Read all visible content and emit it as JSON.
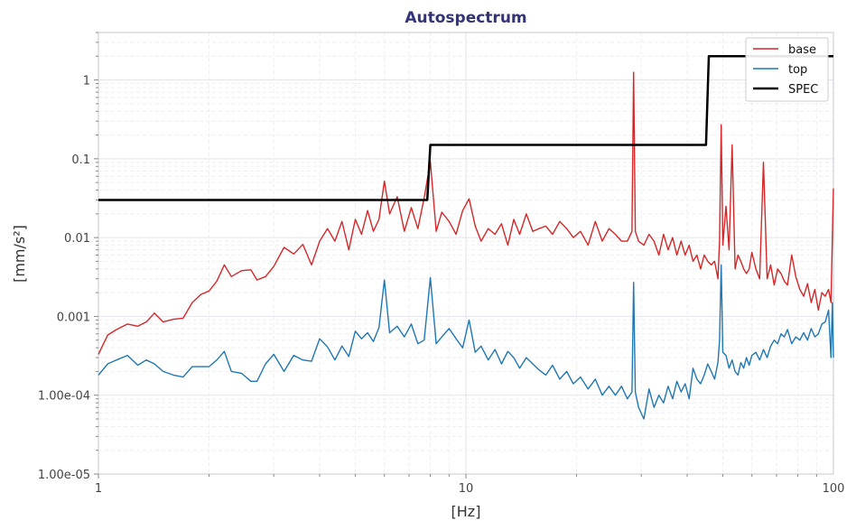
{
  "chart_data": {
    "type": "line",
    "title": "Autospectrum",
    "xlabel": "[Hz]",
    "ylabel": "[mm/s²]",
    "xscale": "log",
    "yscale": "log",
    "xlim": [
      1,
      100
    ],
    "ylim": [
      1e-05,
      4
    ],
    "grid": true,
    "legend_position": "top-right",
    "x_ticks": [
      {
        "value": 1,
        "label": "1"
      },
      {
        "value": 10,
        "label": "10"
      },
      {
        "value": 100,
        "label": "100"
      }
    ],
    "y_ticks": [
      {
        "value": 1,
        "label": "1"
      },
      {
        "value": 0.1,
        "label": "0.1"
      },
      {
        "value": 0.01,
        "label": "0.01"
      },
      {
        "value": 0.001,
        "label": "0.001"
      },
      {
        "value": 0.0001,
        "label": "1.00e-04"
      },
      {
        "value": 1e-05,
        "label": "1.00e-05"
      }
    ],
    "series": [
      {
        "name": "base",
        "color": "#d62728",
        "x": [
          1,
          1.06,
          1.12,
          1.2,
          1.28,
          1.35,
          1.42,
          1.5,
          1.6,
          1.7,
          1.8,
          1.9,
          2.0,
          2.1,
          2.2,
          2.3,
          2.45,
          2.6,
          2.7,
          2.85,
          3.0,
          3.2,
          3.4,
          3.6,
          3.8,
          4.0,
          4.2,
          4.4,
          4.6,
          4.8,
          5.0,
          5.2,
          5.4,
          5.6,
          5.8,
          6.0,
          6.2,
          6.5,
          6.8,
          7.1,
          7.4,
          7.7,
          8.0,
          8.3,
          8.6,
          9.0,
          9.4,
          9.8,
          10.2,
          10.6,
          11.0,
          11.5,
          12.0,
          12.5,
          13.0,
          13.5,
          14.0,
          14.6,
          15.2,
          15.8,
          16.5,
          17.2,
          18.0,
          18.8,
          19.6,
          20.5,
          21.5,
          22.5,
          23.5,
          24.5,
          25.5,
          26.5,
          27.5,
          28.3,
          28.6,
          28.9,
          29.5,
          30.5,
          31.5,
          32.5,
          33.5,
          34.5,
          35.5,
          36.5,
          37.5,
          38.5,
          39.5,
          40.5,
          41.5,
          42.5,
          43.5,
          44.5,
          45.5,
          46.5,
          47.5,
          48.5,
          49.0,
          49.5,
          50.0,
          51.0,
          52.0,
          53.0,
          54.0,
          55.0,
          56.0,
          57.0,
          58.0,
          59.0,
          60.0,
          61.5,
          63.0,
          64.5,
          66.0,
          67.5,
          69.0,
          70.5,
          72.0,
          73.5,
          75.0,
          77.0,
          79.0,
          81.0,
          83.0,
          85.0,
          87.0,
          89.0,
          91.0,
          93.0,
          95.0,
          97.0,
          98.5,
          99.3,
          100
        ],
        "y": [
          0.00033,
          0.00058,
          0.00068,
          0.0008,
          0.00075,
          0.00085,
          0.0011,
          0.00085,
          0.00092,
          0.00095,
          0.0015,
          0.0019,
          0.0021,
          0.0028,
          0.0045,
          0.0032,
          0.0038,
          0.0039,
          0.0029,
          0.0032,
          0.0043,
          0.0075,
          0.0062,
          0.0082,
          0.0045,
          0.009,
          0.013,
          0.009,
          0.016,
          0.007,
          0.017,
          0.011,
          0.022,
          0.012,
          0.017,
          0.052,
          0.02,
          0.033,
          0.012,
          0.024,
          0.013,
          0.032,
          0.092,
          0.012,
          0.021,
          0.016,
          0.011,
          0.022,
          0.031,
          0.014,
          0.009,
          0.013,
          0.011,
          0.015,
          0.008,
          0.017,
          0.011,
          0.02,
          0.012,
          0.013,
          0.014,
          0.011,
          0.016,
          0.013,
          0.01,
          0.012,
          0.008,
          0.016,
          0.009,
          0.013,
          0.011,
          0.009,
          0.009,
          0.012,
          1.25,
          0.012,
          0.009,
          0.008,
          0.011,
          0.009,
          0.006,
          0.011,
          0.007,
          0.01,
          0.006,
          0.009,
          0.006,
          0.008,
          0.005,
          0.006,
          0.004,
          0.006,
          0.005,
          0.0045,
          0.005,
          0.003,
          0.009,
          0.27,
          0.008,
          0.025,
          0.007,
          0.15,
          0.004,
          0.006,
          0.005,
          0.004,
          0.0035,
          0.004,
          0.0065,
          0.004,
          0.003,
          0.09,
          0.003,
          0.0045,
          0.0025,
          0.004,
          0.0035,
          0.0028,
          0.0025,
          0.006,
          0.0032,
          0.0022,
          0.0018,
          0.0026,
          0.0015,
          0.0022,
          0.0012,
          0.002,
          0.0018,
          0.0022,
          0.0015,
          0.01,
          0.042
        ]
      },
      {
        "name": "top",
        "color": "#1f77b4",
        "x": [
          1,
          1.06,
          1.12,
          1.2,
          1.28,
          1.35,
          1.42,
          1.5,
          1.6,
          1.7,
          1.8,
          1.9,
          2.0,
          2.1,
          2.2,
          2.3,
          2.45,
          2.6,
          2.7,
          2.85,
          3.0,
          3.2,
          3.4,
          3.6,
          3.8,
          4.0,
          4.2,
          4.4,
          4.6,
          4.8,
          5.0,
          5.2,
          5.4,
          5.6,
          5.8,
          6.0,
          6.2,
          6.5,
          6.8,
          7.1,
          7.4,
          7.7,
          8.0,
          8.3,
          8.6,
          9.0,
          9.4,
          9.8,
          10.2,
          10.6,
          11.0,
          11.5,
          12.0,
          12.5,
          13.0,
          13.5,
          14.0,
          14.6,
          15.2,
          15.8,
          16.5,
          17.2,
          18.0,
          18.8,
          19.6,
          20.5,
          21.5,
          22.5,
          23.5,
          24.5,
          25.5,
          26.5,
          27.5,
          28.3,
          28.6,
          28.9,
          29.5,
          30.5,
          31.5,
          32.5,
          33.5,
          34.5,
          35.5,
          36.5,
          37.5,
          38.5,
          39.5,
          40.5,
          41.5,
          42.5,
          43.5,
          44.5,
          45.5,
          46.5,
          47.5,
          48.5,
          49.0,
          49.5,
          50.0,
          51.0,
          52.0,
          53.0,
          54.0,
          55.0,
          56.0,
          57.0,
          58.0,
          59.0,
          60.0,
          61.5,
          63.0,
          64.5,
          66.0,
          67.5,
          69.0,
          70.5,
          72.0,
          73.5,
          75.0,
          77.0,
          79.0,
          81.0,
          83.0,
          85.0,
          87.0,
          89.0,
          91.0,
          93.0,
          95.0,
          97.0,
          98.5,
          99.3,
          100
        ],
        "y": [
          0.00018,
          0.00025,
          0.00028,
          0.00032,
          0.00024,
          0.00028,
          0.00025,
          0.0002,
          0.00018,
          0.00017,
          0.00023,
          0.00023,
          0.00023,
          0.00028,
          0.00036,
          0.0002,
          0.00019,
          0.00015,
          0.00015,
          0.00025,
          0.00033,
          0.0002,
          0.00032,
          0.00028,
          0.00027,
          0.00052,
          0.00041,
          0.00028,
          0.00042,
          0.00031,
          0.00065,
          0.00052,
          0.00062,
          0.00048,
          0.00072,
          0.0029,
          0.00062,
          0.00075,
          0.00055,
          0.0008,
          0.00045,
          0.0005,
          0.0031,
          0.00045,
          0.00055,
          0.0007,
          0.00052,
          0.0004,
          0.0009,
          0.00035,
          0.00042,
          0.00028,
          0.00038,
          0.00025,
          0.00036,
          0.0003,
          0.00022,
          0.0003,
          0.00025,
          0.00021,
          0.00018,
          0.00024,
          0.00016,
          0.0002,
          0.00014,
          0.00017,
          0.00012,
          0.00016,
          0.0001,
          0.00013,
          0.0001,
          0.00013,
          9e-05,
          0.00011,
          0.0027,
          0.00011,
          7e-05,
          5e-05,
          0.00012,
          7e-05,
          0.0001,
          8e-05,
          0.00013,
          9e-05,
          0.00015,
          0.00011,
          0.00014,
          9e-05,
          0.00022,
          0.00016,
          0.00014,
          0.00018,
          0.00025,
          0.0002,
          0.00016,
          0.00026,
          0.0005,
          0.0045,
          0.00035,
          0.00032,
          0.00022,
          0.00028,
          0.0002,
          0.00018,
          0.00026,
          0.00022,
          0.0003,
          0.00024,
          0.00032,
          0.00035,
          0.00028,
          0.00038,
          0.0003,
          0.00042,
          0.0005,
          0.00045,
          0.0006,
          0.00055,
          0.00068,
          0.00045,
          0.00055,
          0.0005,
          0.00062,
          0.0005,
          0.0007,
          0.00055,
          0.0006,
          0.0008,
          0.00085,
          0.0012,
          0.0003,
          0.0015,
          0.0003
        ]
      },
      {
        "name": "SPEC",
        "color": "#000000",
        "step": true,
        "x": [
          1,
          7.85,
          8.0,
          45,
          45.8,
          100
        ],
        "y": [
          0.03,
          0.03,
          0.15,
          0.15,
          2.0,
          2.0
        ]
      }
    ]
  }
}
